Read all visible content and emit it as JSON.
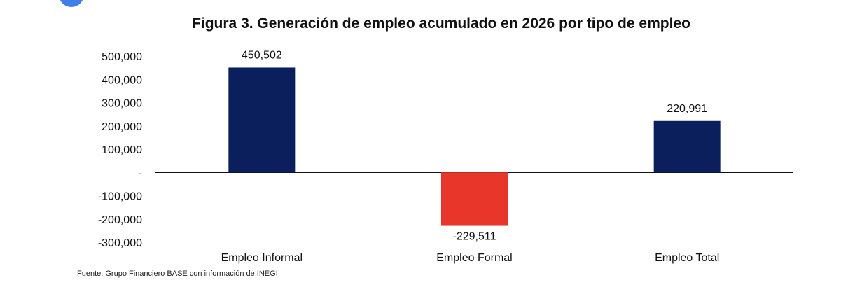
{
  "chart_data": {
    "type": "bar",
    "title": "Figura 3. Generación de empleo acumulado en 2026 por tipo de empleo",
    "categories": [
      "Empleo Informal",
      "Empleo Formal",
      "Empleo Total"
    ],
    "values": [
      450502,
      -229511,
      220991
    ],
    "value_labels": [
      "450,502",
      "-229,511",
      "220,991"
    ],
    "colors": [
      "#0b1f5c",
      "#e8372a",
      "#0b1f5c"
    ],
    "ylim": [
      -300000,
      500000
    ],
    "y_ticks": [
      500000,
      400000,
      300000,
      200000,
      100000,
      0,
      -100000,
      -200000,
      -300000
    ],
    "y_tick_labels": [
      "500,000",
      "400,000",
      "300,000",
      "200,000",
      "100,000",
      "-",
      "-100,000",
      "-200,000",
      "-300,000"
    ],
    "grid": false,
    "legend": "none"
  },
  "source": "Fuente: Grupo Financiero BASE con información de INEGI"
}
